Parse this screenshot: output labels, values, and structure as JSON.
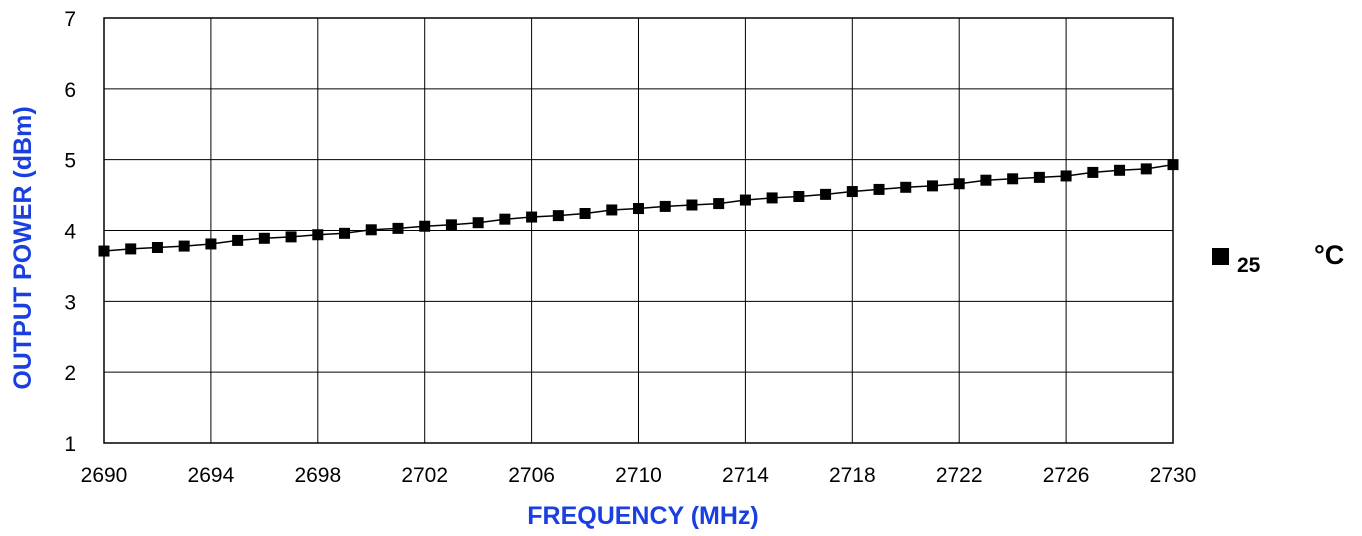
{
  "colors": {
    "axis_title": "#1a3fe0",
    "series": "#000000",
    "grid": "#000000"
  },
  "chart_data": {
    "type": "line",
    "title": "",
    "xlabel": "FREQUENCY (MHz)",
    "ylabel": "OUTPUT POWER (dBm)",
    "xlim": [
      2690,
      2730
    ],
    "ylim": [
      1,
      7
    ],
    "x_ticks": [
      "2690",
      "2694",
      "2698",
      "2702",
      "2706",
      "2710",
      "2714",
      "2718",
      "2722",
      "2726",
      "2730"
    ],
    "y_ticks": [
      "1",
      "2",
      "3",
      "4",
      "5",
      "6",
      "7"
    ],
    "grid": true,
    "legend_position": "right",
    "marker": "square",
    "series": [
      {
        "name": "25 °C",
        "name_parts": [
          "25",
          "°C"
        ],
        "x": [
          2690,
          2691,
          2692,
          2693,
          2694,
          2695,
          2696,
          2697,
          2698,
          2699,
          2700,
          2701,
          2702,
          2703,
          2704,
          2705,
          2706,
          2707,
          2708,
          2709,
          2710,
          2711,
          2712,
          2713,
          2714,
          2715,
          2716,
          2717,
          2718,
          2719,
          2720,
          2721,
          2722,
          2723,
          2724,
          2725,
          2726,
          2727,
          2728,
          2729,
          2730
        ],
        "y": [
          3.71,
          3.74,
          3.76,
          3.78,
          3.81,
          3.86,
          3.89,
          3.91,
          3.94,
          3.96,
          4.01,
          4.03,
          4.06,
          4.08,
          4.11,
          4.16,
          4.19,
          4.21,
          4.24,
          4.29,
          4.31,
          4.34,
          4.36,
          4.38,
          4.43,
          4.46,
          4.48,
          4.51,
          4.55,
          4.58,
          4.61,
          4.63,
          4.66,
          4.71,
          4.73,
          4.75,
          4.77,
          4.82,
          4.85,
          4.87,
          4.93
        ]
      }
    ]
  }
}
